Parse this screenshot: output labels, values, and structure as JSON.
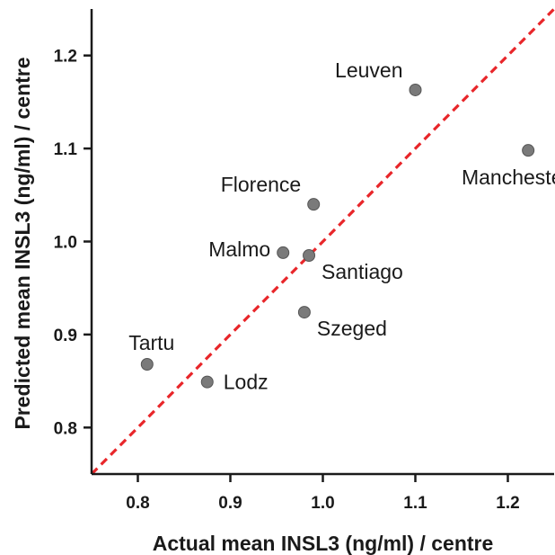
{
  "chart_data": {
    "type": "scatter",
    "xlabel": "Actual mean INSL3 (ng/ml) / centre",
    "ylabel": "Predicted mean INSL3 (ng/ml) / centre",
    "xlim": [
      0.75,
      1.25
    ],
    "ylim": [
      0.75,
      1.25
    ],
    "x_ticks": [
      0.8,
      0.9,
      1.0,
      1.1,
      1.2
    ],
    "y_ticks": [
      0.8,
      0.9,
      1.0,
      1.1,
      1.2
    ],
    "x_tick_labels": [
      "0.8",
      "0.9",
      "1.0",
      "1.1",
      "1.2"
    ],
    "y_tick_labels": [
      "0.8",
      "0.9",
      "1.0",
      "1.1",
      "1.2"
    ],
    "grid": false,
    "reference_line": {
      "type": "identity",
      "style": "dashed",
      "color": "#e8262a"
    },
    "point_color": "#7a7a7a",
    "points": [
      {
        "label": "Leuven",
        "x": 1.1,
        "y": 1.163,
        "label_side": "upper-left"
      },
      {
        "label": "Manchester",
        "x": 1.222,
        "y": 1.098,
        "label_side": "lower-left"
      },
      {
        "label": "Florence",
        "x": 0.99,
        "y": 1.04,
        "label_side": "upper-left"
      },
      {
        "label": "Malmo",
        "x": 0.957,
        "y": 0.988,
        "label_side": "left"
      },
      {
        "label": "Santiago",
        "x": 0.985,
        "y": 0.985,
        "label_side": "lower-right"
      },
      {
        "label": "Szeged",
        "x": 0.98,
        "y": 0.924,
        "label_side": "lower-right"
      },
      {
        "label": "Tartu",
        "x": 0.81,
        "y": 0.868,
        "label_side": "above"
      },
      {
        "label": "Lodz",
        "x": 0.875,
        "y": 0.849,
        "label_side": "right"
      }
    ]
  }
}
